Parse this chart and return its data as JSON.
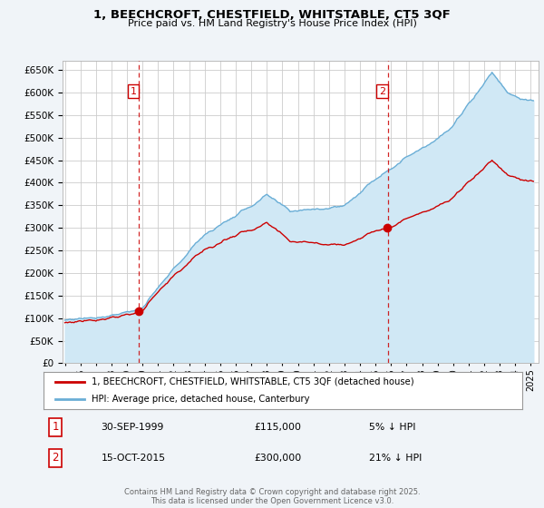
{
  "title": "1, BEECHCROFT, CHESTFIELD, WHITSTABLE, CT5 3QF",
  "subtitle": "Price paid vs. HM Land Registry's House Price Index (HPI)",
  "legend_line1": "1, BEECHCROFT, CHESTFIELD, WHITSTABLE, CT5 3QF (detached house)",
  "legend_line2": "HPI: Average price, detached house, Canterbury",
  "sale1_date": "30-SEP-1999",
  "sale1_price": "£115,000",
  "sale1_hpi": "5% ↓ HPI",
  "sale2_date": "15-OCT-2015",
  "sale2_price": "£300,000",
  "sale2_hpi": "21% ↓ HPI",
  "footer": "Contains HM Land Registry data © Crown copyright and database right 2025.\nThis data is licensed under the Open Government Licence v3.0.",
  "hpi_color": "#6aaed6",
  "hpi_fill_color": "#d0e8f5",
  "price_color": "#cc0000",
  "vline_color": "#cc0000",
  "grid_color": "#cccccc",
  "bg_color": "#f0f4f8",
  "plot_bg_color": "#ffffff",
  "ylim": [
    0,
    670000
  ],
  "yticks": [
    0,
    50000,
    100000,
    150000,
    200000,
    250000,
    300000,
    350000,
    400000,
    450000,
    500000,
    550000,
    600000,
    650000
  ],
  "sale1_x": 1999.75,
  "sale2_x": 2015.79,
  "sale1_price_val": 115000,
  "sale2_price_val": 300000
}
